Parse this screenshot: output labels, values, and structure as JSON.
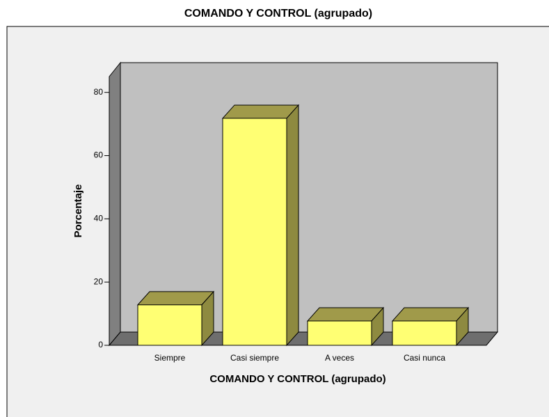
{
  "chart_data": {
    "type": "bar3d",
    "title": "COMANDO Y CONTROL (agrupado)",
    "x_label": "COMANDO Y CONTROL (agrupado)",
    "y_label": "Porcentaje",
    "categories": [
      "Siempre",
      "Casi siempre",
      "A veces",
      "Casi nunca"
    ],
    "values": [
      12.8,
      71.8,
      7.7,
      7.7
    ],
    "color": "#ffff73",
    "ylim": [
      0,
      85
    ],
    "yticks": [
      0,
      20,
      40,
      60,
      80
    ]
  }
}
